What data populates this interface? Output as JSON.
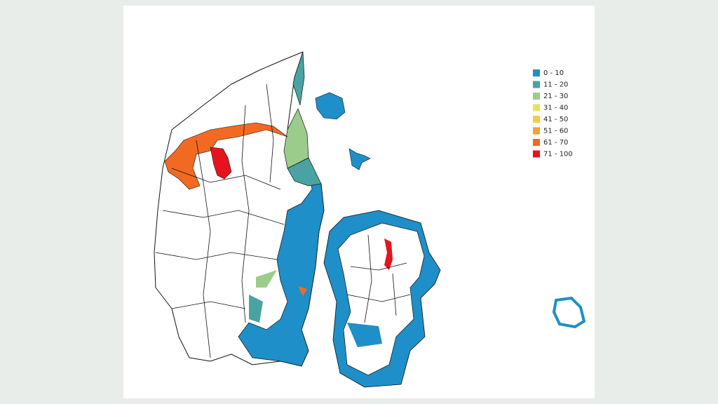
{
  "legend": {
    "items": [
      {
        "label": "0 - 10",
        "color": "#1e8fc8"
      },
      {
        "label": "11 - 20",
        "color": "#4aa3a3"
      },
      {
        "label": "21 - 30",
        "color": "#9ccc8c"
      },
      {
        "label": "31 - 40",
        "color": "#e3e35a"
      },
      {
        "label": "41 - 50",
        "color": "#f5cf3a"
      },
      {
        "label": "51 - 60",
        "color": "#f5a030"
      },
      {
        "label": "61 - 70",
        "color": "#f26a22"
      },
      {
        "label": "71 - 100",
        "color": "#e5141c"
      }
    ]
  }
}
